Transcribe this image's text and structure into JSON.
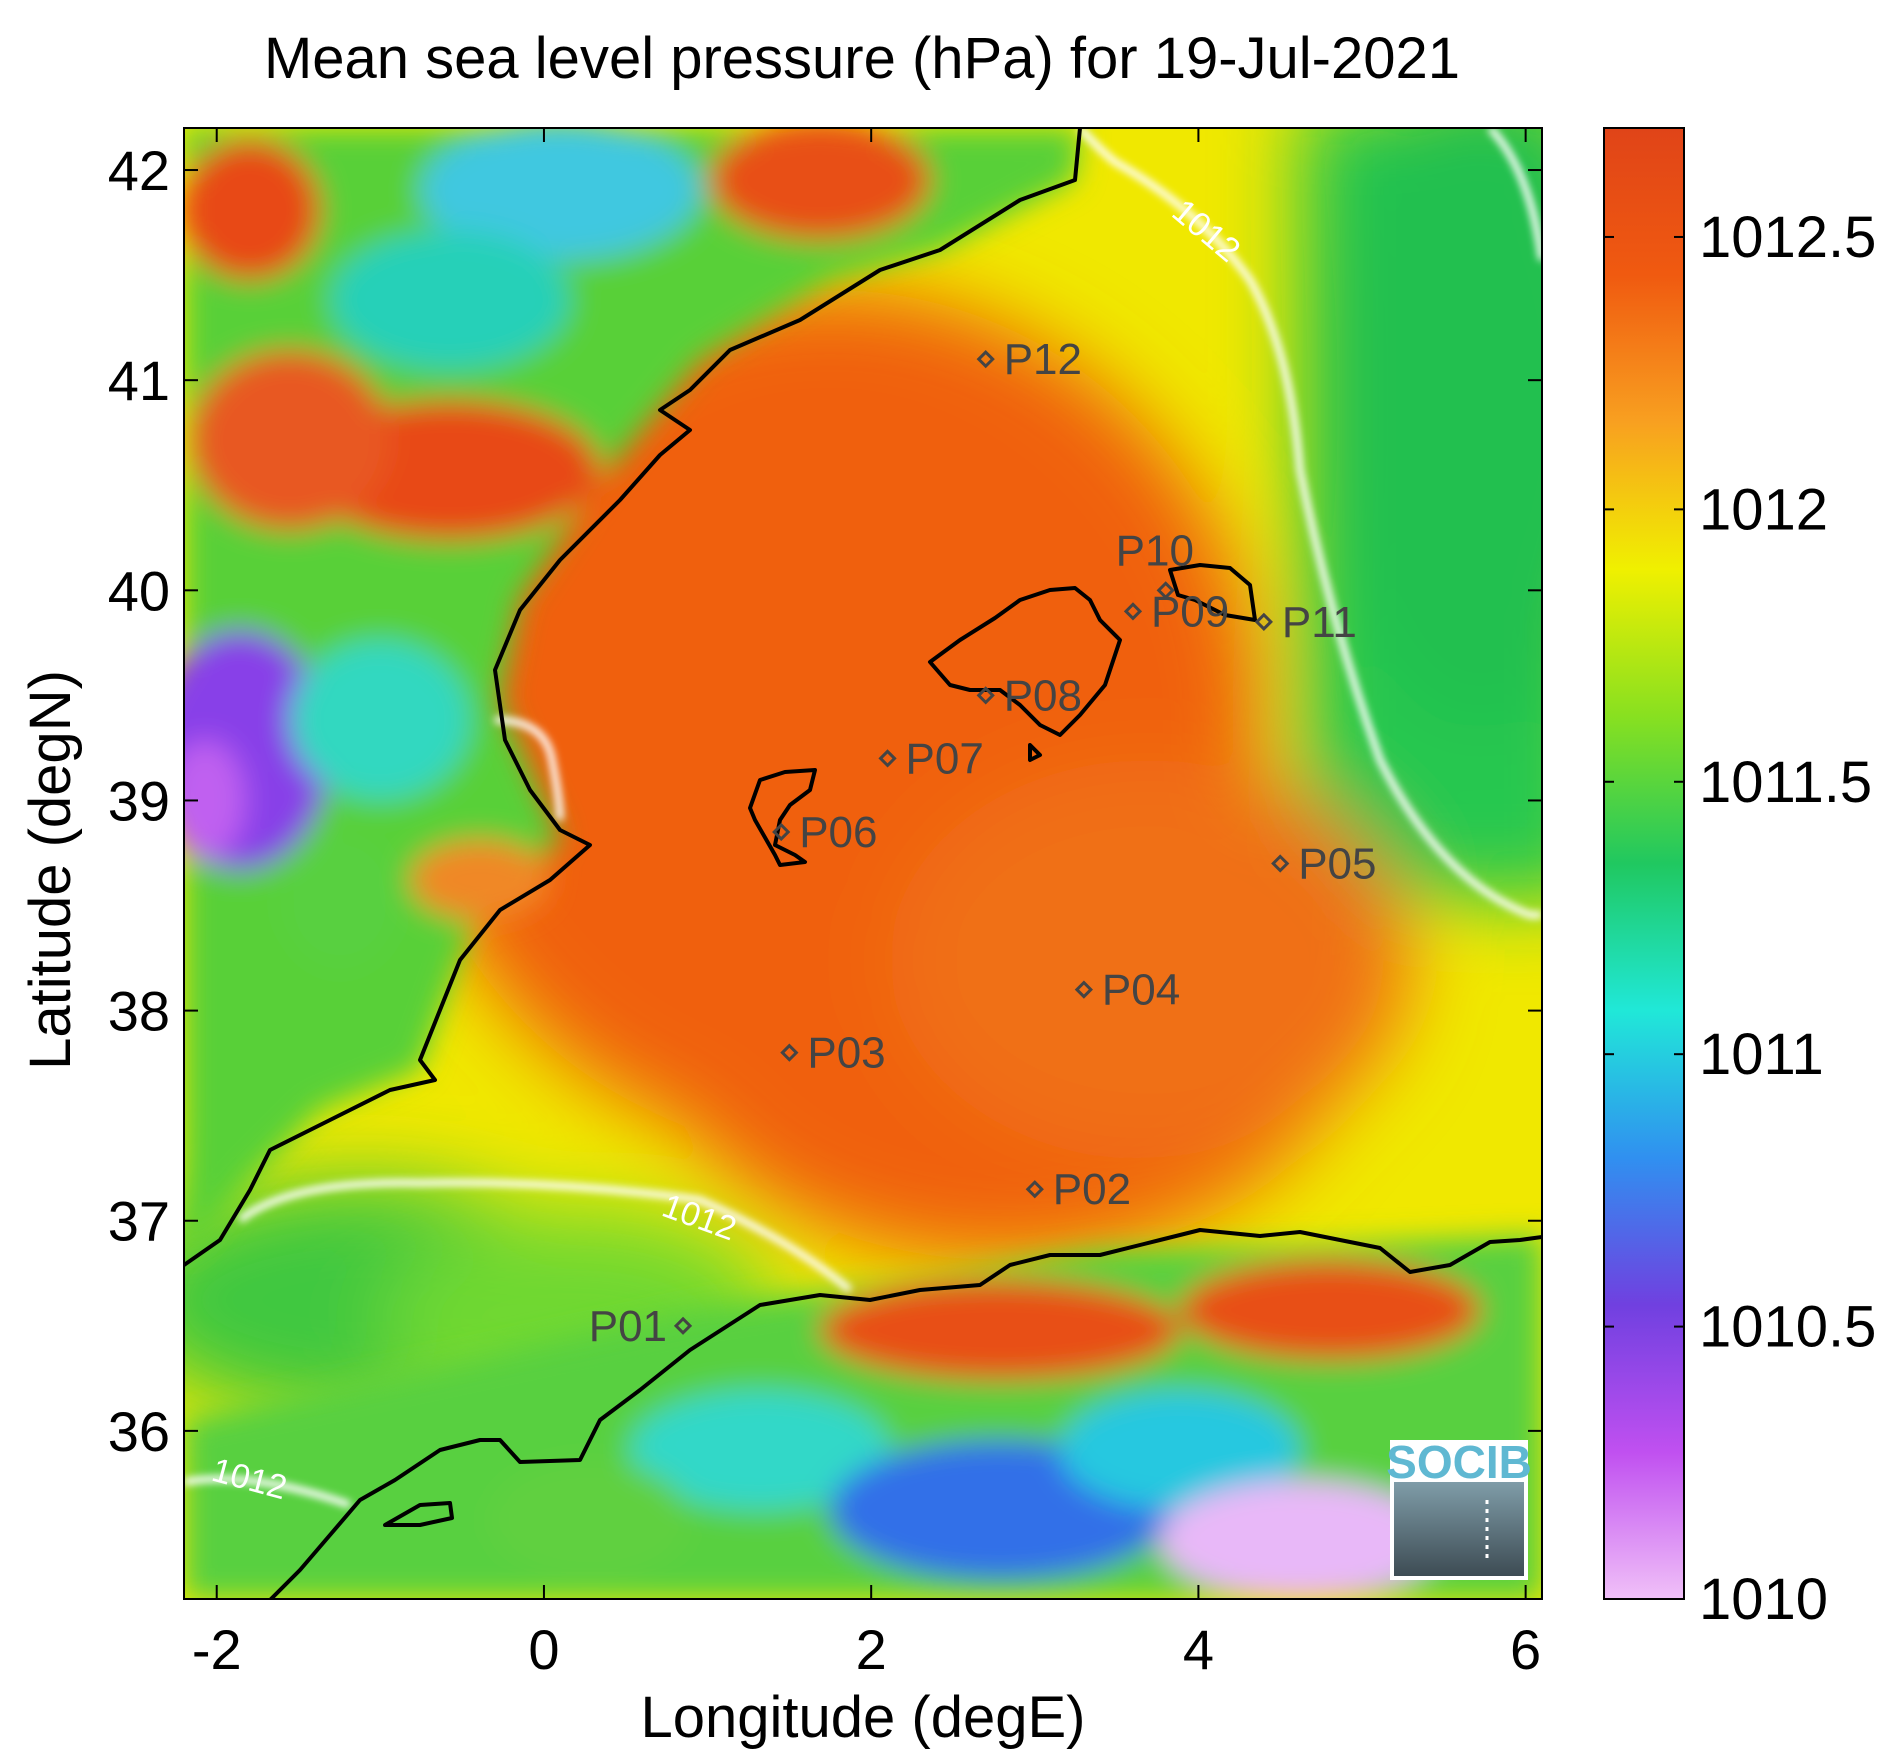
{
  "chart_data": {
    "type": "heatmap",
    "title": "Mean sea level pressure (hPa) for 19-Jul-2021",
    "xlabel": "Longitude (degE)",
    "ylabel": "Latitude (degN)",
    "xlim": [
      -2.2,
      6.1
    ],
    "ylim": [
      35.2,
      42.2
    ],
    "xticks": [
      -2,
      0,
      2,
      4,
      6
    ],
    "xtick_labels": [
      "-2",
      "0",
      "2",
      "4",
      "6"
    ],
    "yticks": [
      36,
      37,
      38,
      39,
      40,
      41,
      42
    ],
    "ytick_labels": [
      "36",
      "37",
      "38",
      "39",
      "40",
      "41",
      "42"
    ],
    "colorbar": {
      "range": [
        1010,
        1012.7
      ],
      "ticks": [
        1010,
        1010.5,
        1011,
        1011.5,
        1012,
        1012.5
      ],
      "tick_labels": [
        "1010",
        "1010.5",
        "1011",
        "1011.5",
        "1012",
        "1012.5"
      ],
      "colors": [
        "#f0c0f8",
        "#c050f0",
        "#7040e0",
        "#3090f0",
        "#20e8d8",
        "#20c860",
        "#88e020",
        "#f0f000",
        "#f8a020",
        "#f05a10",
        "#e04418"
      ]
    },
    "contour_level": 1012,
    "contour_labels": [
      "1012",
      "1012",
      "1012"
    ],
    "stations": [
      {
        "name": "P01",
        "lon": 0.85,
        "lat": 36.5
      },
      {
        "name": "P02",
        "lon": 3.0,
        "lat": 37.15
      },
      {
        "name": "P03",
        "lon": 1.5,
        "lat": 37.8
      },
      {
        "name": "P04",
        "lon": 3.3,
        "lat": 38.1
      },
      {
        "name": "P05",
        "lon": 4.5,
        "lat": 38.7
      },
      {
        "name": "P06",
        "lon": 1.45,
        "lat": 38.85
      },
      {
        "name": "P07",
        "lon": 2.1,
        "lat": 39.2
      },
      {
        "name": "P08",
        "lon": 2.7,
        "lat": 39.5
      },
      {
        "name": "P09",
        "lon": 3.6,
        "lat": 39.9
      },
      {
        "name": "P10",
        "lon": 3.8,
        "lat": 40.0
      },
      {
        "name": "P11",
        "lon": 4.4,
        "lat": 39.85
      },
      {
        "name": "P12",
        "lon": 2.7,
        "lat": 41.1
      }
    ]
  },
  "logo": {
    "text": "SOCIB"
  }
}
